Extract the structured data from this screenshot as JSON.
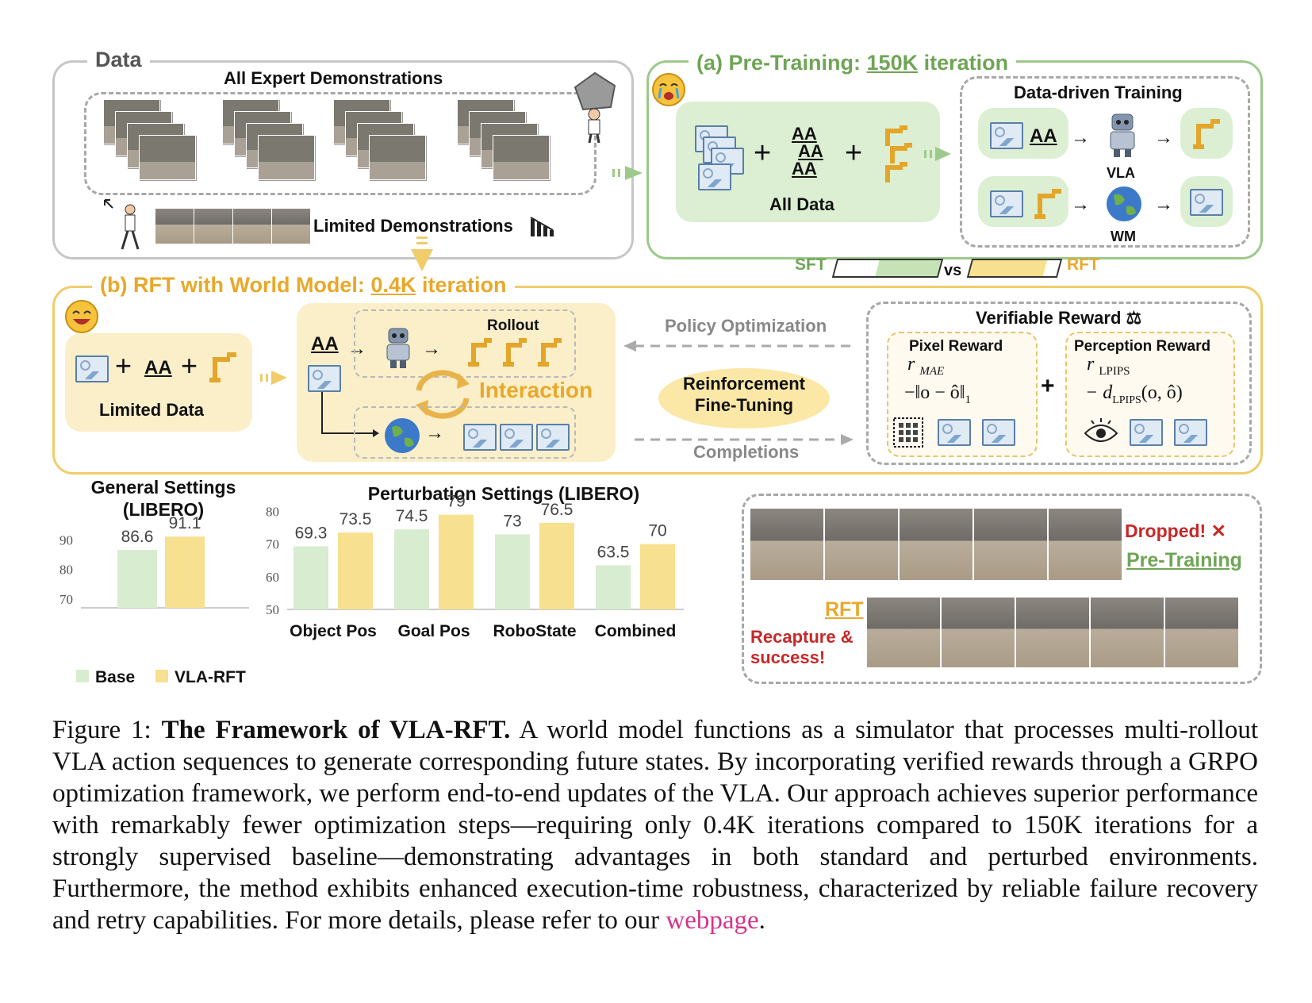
{
  "data_panel": {
    "title": "Data",
    "all_demos": "All Expert Demonstrations",
    "limited_demos": "Limited Demonstrations"
  },
  "pretrain_panel": {
    "title_prefix": "(a) Pre-Training: ",
    "title_emph": "150K",
    "title_suffix": " iteration",
    "all_data": "All Data",
    "ddt_title": "Data-driven Training",
    "vla": "VLA",
    "wm": "WM"
  },
  "compare": {
    "sft": "SFT",
    "vs": "vs",
    "rft": "RFT"
  },
  "rft_panel": {
    "title_prefix": "(b) RFT with World Model: ",
    "title_emph": "0.4K",
    "title_suffix": " iteration",
    "limited_data": "Limited Data",
    "rollout": "Rollout",
    "interaction": "Interaction",
    "policy_opt": "Policy Optimization",
    "rft_line1": "Reinforcement",
    "rft_line2": "Fine-Tuning",
    "completions": "Completions",
    "verifiable": "Verifiable Reward ⚖",
    "pixel_reward": "Pixel Reward",
    "pixel_symbol": "r",
    "pixel_sub": "MAE",
    "pixel_formula": "−‖o − ô‖",
    "pixel_formula_sub": "1",
    "plus": "+",
    "perception_reward": "Perception Reward",
    "perc_symbol": "r",
    "perc_sub": "LPIPS",
    "perc_formula": "− d",
    "perc_formula_sub": "LPIPS",
    "perc_formula_tail": "(o, ô)"
  },
  "glyphs": {
    "text_a": "AA",
    "plus": "+"
  },
  "chart_data": [
    {
      "type": "bar",
      "title_line1": "General Settings",
      "title_line2": "(LIBERO)",
      "categories": [
        ""
      ],
      "series": [
        {
          "name": "Base",
          "values": [
            86.6
          ],
          "color": "#d8eccf"
        },
        {
          "name": "VLA-RFT",
          "values": [
            91.1
          ],
          "color": "#f7e08f"
        }
      ],
      "yticks": [
        70,
        80,
        90
      ],
      "ylim": [
        67,
        96
      ],
      "grid": false
    },
    {
      "type": "bar",
      "title": "Perturbation Settings (LIBERO)",
      "categories": [
        "Object Pos",
        "Goal Pos",
        "RoboState",
        "Combined"
      ],
      "series": [
        {
          "name": "Base",
          "values": [
            69.3,
            74.5,
            73,
            63.5
          ],
          "color": "#d8eccf"
        },
        {
          "name": "VLA-RFT",
          "values": [
            73.5,
            79,
            76.5,
            70
          ],
          "color": "#f7e08f"
        }
      ],
      "yticks": [
        50,
        60,
        70,
        80
      ],
      "ylim": [
        50,
        84
      ],
      "grid": false
    }
  ],
  "legend": {
    "base": "Base",
    "rft": "VLA-RFT"
  },
  "robustness": {
    "dropped": "Dropped!",
    "cross": "✕",
    "pretraining": "Pre-Training",
    "rft": "RFT",
    "recapture1": "Recapture &",
    "recapture2": "success!"
  },
  "caption": {
    "label": "Figure 1: ",
    "bold": "The Framework of VLA-RFT.",
    "body": " A world model functions as a simulator that processes multi-rollout VLA action sequences to generate corresponding future states. By incorporating verified rewards through a GRPO optimization framework, we perform end-to-end updates of the VLA. Our approach achieves superior performance with remarkably fewer optimization steps—requiring only 0.4K iterations compared to 150K iterations for a strongly supervised baseline—demonstrating advantages in both standard and perturbed environments. Furthermore, the method exhibits enhanced execution-time robustness, characterized by reliable failure recovery and retry capabilities. For more details, please refer to our ",
    "link": "webpage",
    "end": "."
  },
  "colors": {
    "green": "#6fa556",
    "orange": "#e9a82a",
    "red": "#c62828",
    "link": "#d6338a"
  }
}
